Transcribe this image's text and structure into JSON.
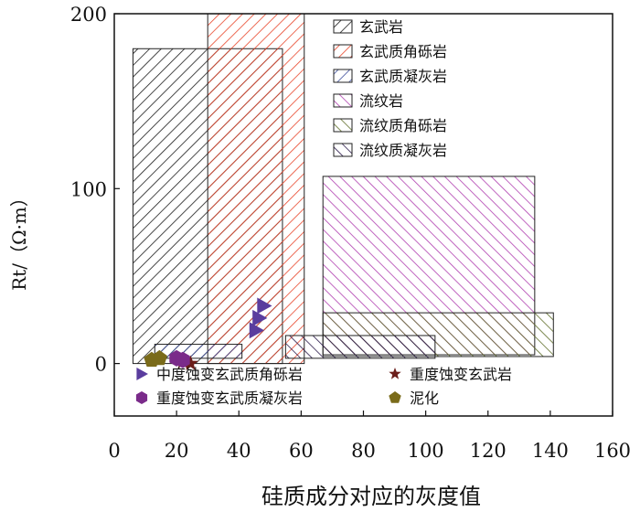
{
  "chart_data": {
    "type": "scatter",
    "xlabel": "硅质成分对应的灰度值",
    "ylabel": "Rt/（Ω·m）",
    "xlim": [
      0,
      160
    ],
    "ylim": [
      -30,
      200
    ],
    "xticks": [
      0,
      20,
      40,
      60,
      80,
      100,
      120,
      140,
      160
    ],
    "yticks": [
      0,
      100,
      200
    ],
    "grid": false,
    "legend_position": "top-right",
    "range_series": [
      {
        "name": "玄武岩",
        "color": "#1a1a1a",
        "hatch": "forward",
        "x": [
          6,
          54
        ],
        "y": [
          0,
          180
        ]
      },
      {
        "name": "玄武质角砾岩",
        "color": "#e8452a",
        "hatch": "forward",
        "x": [
          30,
          61
        ],
        "y": [
          0,
          200
        ]
      },
      {
        "name": "玄武质凝灰岩",
        "color": "#3e4f9c",
        "hatch": "forward",
        "x": [
          13,
          41
        ],
        "y": [
          3,
          11
        ]
      },
      {
        "name": "流纹岩",
        "color": "#b040b0",
        "hatch": "back",
        "x": [
          67,
          135
        ],
        "y": [
          5,
          107
        ]
      },
      {
        "name": "流纹质角砾岩",
        "color": "#5f6e2a",
        "hatch": "back",
        "x": [
          67,
          141
        ],
        "y": [
          4,
          29
        ]
      },
      {
        "name": "流纹质凝灰岩",
        "color": "#2a1a4a",
        "hatch": "back",
        "x": [
          55,
          103
        ],
        "y": [
          3,
          16
        ]
      }
    ],
    "point_series": [
      {
        "name": "中度蚀变玄武质角砾岩",
        "marker": "triangle",
        "color": "#5a3d9e",
        "x": [
          48,
          46.5,
          45.5
        ],
        "y": [
          33,
          26,
          19
        ]
      },
      {
        "name": "重度蚀变玄武岩",
        "marker": "star",
        "color": "#6b1e1a",
        "x": [
          22,
          24.5
        ],
        "y": [
          1,
          0
        ]
      },
      {
        "name": "重度蚀变玄武质凝灰岩",
        "marker": "hexagon",
        "color": "#7a2b8a",
        "x": [
          20,
          22
        ],
        "y": [
          3,
          2
        ]
      },
      {
        "name": "泥化",
        "marker": "pentagon",
        "color": "#7a6b1a",
        "x": [
          12,
          14.5
        ],
        "y": [
          2,
          3
        ]
      }
    ]
  },
  "colors": {
    "axis": "#111111",
    "text": "#111111"
  }
}
